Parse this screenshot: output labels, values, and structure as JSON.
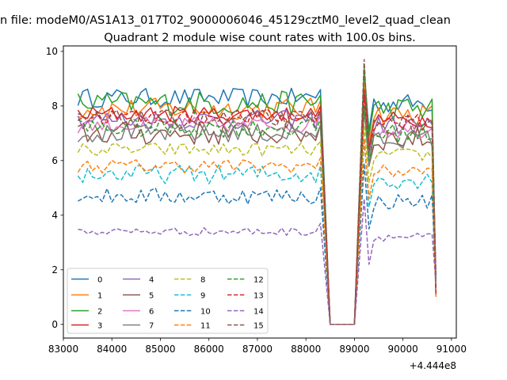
{
  "chart_data": {
    "type": "line",
    "suptitle": "n file: modeM0/AS1A13_017T02_9000006046_45129cztM0_level2_quad_clean",
    "title": "Quadrant 2 module wise count rates with 100.0s bins.",
    "xlabel": "",
    "ylabel": "",
    "offset_label": "+4.444e8",
    "xlim": [
      83000,
      91100
    ],
    "ylim": [
      -0.5,
      10.2
    ],
    "xticks": [
      83000,
      84000,
      85000,
      86000,
      87000,
      88000,
      89000,
      90000,
      91000
    ],
    "xtick_labels": [
      "83000",
      "84000",
      "85000",
      "86000",
      "87000",
      "88000",
      "89000",
      "90000",
      "91000"
    ],
    "yticks": [
      0,
      2,
      4,
      6,
      8,
      10
    ],
    "ytick_labels": [
      "0",
      "2",
      "4",
      "6",
      "8",
      "10"
    ],
    "grid": false,
    "legend": {
      "placement": "lower-left",
      "ncol": 4
    },
    "segments": [
      {
        "x_start": 83300,
        "x_end": 88300,
        "step": 100
      },
      {
        "x_start": 88500,
        "x_end": 89000,
        "step": 100
      },
      {
        "x_start": 89200,
        "x_end": 90600,
        "step": 100
      }
    ],
    "series": [
      {
        "name": "0",
        "color": "#1f77b4",
        "style": "solid",
        "level": 8.3,
        "noise": 0.35,
        "peak": 9.2
      },
      {
        "name": "1",
        "color": "#ff7f0e",
        "style": "solid",
        "level": 7.9,
        "noise": 0.4,
        "peak": 8.9
      },
      {
        "name": "2",
        "color": "#2ca02c",
        "style": "solid",
        "level": 8.1,
        "noise": 0.45,
        "peak": 9.4
      },
      {
        "name": "3",
        "color": "#d62728",
        "style": "solid",
        "level": 7.7,
        "noise": 0.3,
        "peak": 8.6
      },
      {
        "name": "4",
        "color": "#9467bd",
        "style": "solid",
        "level": 7.5,
        "noise": 0.35,
        "peak": 8.4
      },
      {
        "name": "5",
        "color": "#8c564b",
        "style": "solid",
        "level": 7.0,
        "noise": 0.45,
        "peak": 8.5
      },
      {
        "name": "6",
        "color": "#e377c2",
        "style": "solid",
        "level": 7.3,
        "noise": 0.3,
        "peak": 8.2
      },
      {
        "name": "7",
        "color": "#7f7f7f",
        "style": "solid",
        "level": 7.0,
        "noise": 0.35,
        "peak": 7.9
      },
      {
        "name": "8",
        "color": "#bcbd22",
        "style": "dashed",
        "level": 6.4,
        "noise": 0.25,
        "peak": 7.3
      },
      {
        "name": "9",
        "color": "#17becf",
        "style": "dashed",
        "level": 5.5,
        "noise": 0.35,
        "peak": 6.8
      },
      {
        "name": "10",
        "color": "#1f77b4",
        "style": "dashed",
        "level": 4.7,
        "noise": 0.3,
        "peak": 5.9
      },
      {
        "name": "11",
        "color": "#ff7f0e",
        "style": "dashed",
        "level": 5.8,
        "noise": 0.25,
        "peak": 6.8
      },
      {
        "name": "12",
        "color": "#2ca02c",
        "style": "dashed",
        "level": 7.2,
        "noise": 0.35,
        "peak": 8.0
      },
      {
        "name": "13",
        "color": "#d62728",
        "style": "dashed",
        "level": 7.6,
        "noise": 0.3,
        "peak": 8.4
      },
      {
        "name": "14",
        "color": "#9467bd",
        "style": "dashed",
        "level": 3.4,
        "noise": 0.15,
        "peak": 4.6
      },
      {
        "name": "15",
        "color": "#8c564b",
        "style": "dashed",
        "level": 7.5,
        "noise": 0.35,
        "peak": 9.7
      }
    ]
  }
}
